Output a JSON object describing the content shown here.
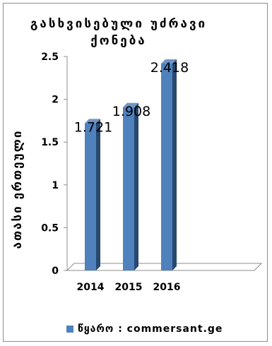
{
  "chart_data": {
    "type": "bar",
    "title_lines": [
      "გასხვისებული უძრავი",
      "ქონება"
    ],
    "ylabel": "ათასი ერთეული",
    "xlabel": "",
    "categories": [
      "2014",
      "2015",
      "2016"
    ],
    "series": [
      {
        "name": "წყარო : commersant.ge",
        "values": [
          1.721,
          1.908,
          2.418
        ]
      }
    ],
    "data_labels": [
      "1.721",
      "1.908",
      "2.418"
    ],
    "ylim": [
      0,
      2.5
    ],
    "yticks": [
      "0",
      "0.5",
      "1",
      "1.5",
      "2",
      "2.5"
    ],
    "grid": false,
    "legend_position": "bottom",
    "bar_color": "#4f81bd",
    "bar_side_color": "#27486f",
    "bar_top_color": "#6f95c7"
  }
}
